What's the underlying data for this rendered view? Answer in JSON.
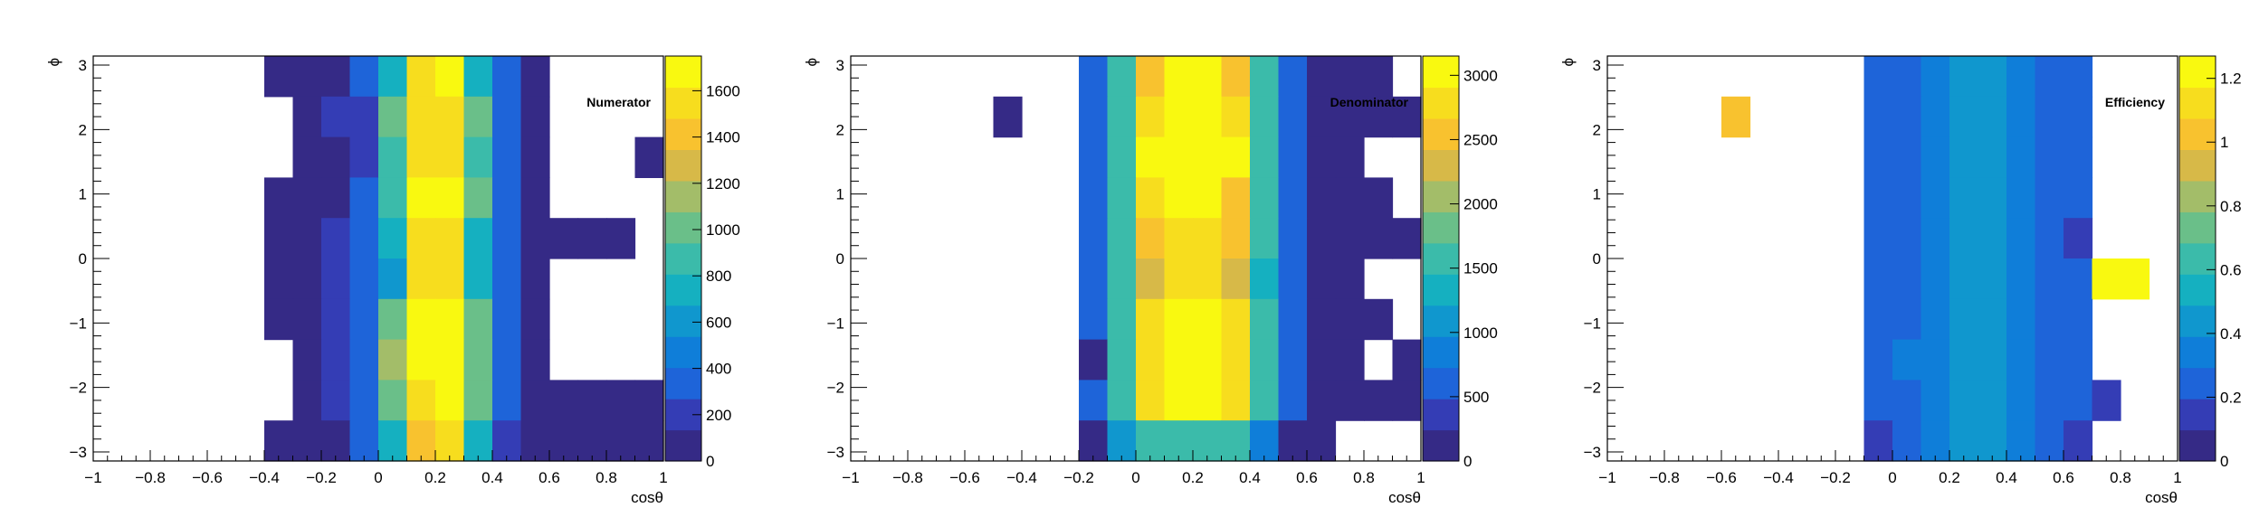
{
  "colors": {
    "palette": [
      "#352a86",
      "#343db5",
      "#1e64d9",
      "#0f7ed9",
      "#1097ce",
      "#15b0c0",
      "#3bbbaa",
      "#6abf89",
      "#a3bd69",
      "#d7b948",
      "#f8c22f",
      "#f7dd1e",
      "#f9f910"
    ],
    "frame": "#000000",
    "background": "#ffffff"
  },
  "chart_data": [
    {
      "type": "heatmap",
      "title": "Numerator",
      "xlabel": "cosθ",
      "ylabel": "ϕ",
      "xlim": [
        -1,
        1
      ],
      "ylim": [
        -3.14,
        3.14
      ],
      "xticks": [
        -1,
        -0.8,
        -0.6,
        -0.4,
        -0.2,
        0,
        0.2,
        0.4,
        0.6,
        0.8,
        1
      ],
      "xtick_labels": [
        "−1",
        "−0.8",
        "−0.6",
        "−0.4",
        "−0.2",
        "0",
        "0.2",
        "0.4",
        "0.6",
        "0.8",
        "1"
      ],
      "yticks": [
        -3,
        -2,
        -1,
        0,
        1,
        2,
        3
      ],
      "ytick_labels": [
        "−3",
        "−2",
        "−1",
        "0",
        "1",
        "2",
        "3"
      ],
      "zlim": [
        0,
        1750
      ],
      "zticks": [
        0,
        200,
        400,
        600,
        800,
        1000,
        1200,
        1400,
        1600
      ],
      "ztick_labels": [
        "0",
        "200",
        "400",
        "600",
        "800",
        "1000",
        "1200",
        "1400",
        "1600"
      ],
      "x_bins": 20,
      "y_bins": 10,
      "bins_occupied": [
        6,
        7,
        8,
        9,
        10,
        11,
        12,
        13,
        14,
        15,
        16,
        17,
        18
      ],
      "values": [
        [
          0,
          0,
          0,
          0,
          0,
          0,
          20,
          20,
          120,
          300,
          800,
          1600,
          1650,
          800,
          350,
          20,
          0,
          0,
          0,
          0
        ],
        [
          0,
          0,
          0,
          0,
          0,
          0,
          0,
          20,
          150,
          200,
          1050,
          1550,
          1600,
          950,
          400,
          20,
          0,
          0,
          0,
          0
        ],
        [
          0,
          0,
          0,
          0,
          0,
          0,
          0,
          20,
          100,
          200,
          850,
          1580,
          1560,
          900,
          300,
          20,
          0,
          0,
          0,
          40
        ],
        [
          0,
          0,
          0,
          0,
          0,
          0,
          20,
          20,
          100,
          350,
          900,
          1650,
          1650,
          1000,
          300,
          20,
          0,
          0,
          0,
          0
        ],
        [
          0,
          0,
          0,
          0,
          0,
          0,
          20,
          20,
          150,
          350,
          700,
          1500,
          1500,
          800,
          400,
          20,
          20,
          20,
          20,
          0
        ],
        [
          0,
          0,
          0,
          0,
          0,
          0,
          20,
          20,
          250,
          350,
          600,
          1550,
          1500,
          700,
          400,
          20,
          0,
          0,
          0,
          0
        ],
        [
          0,
          0,
          0,
          0,
          0,
          0,
          20,
          20,
          200,
          350,
          1000,
          1700,
          1700,
          1050,
          400,
          20,
          0,
          0,
          0,
          0
        ],
        [
          0,
          0,
          0,
          0,
          0,
          0,
          0,
          20,
          250,
          350,
          1100,
          1700,
          1700,
          1050,
          350,
          20,
          0,
          0,
          0,
          0
        ],
        [
          0,
          0,
          0,
          0,
          0,
          0,
          0,
          20,
          200,
          300,
          950,
          1600,
          1700,
          950,
          300,
          20,
          20,
          20,
          20,
          20
        ],
        [
          0,
          0,
          0,
          0,
          0,
          0,
          20,
          20,
          100,
          350,
          700,
          1400,
          1500,
          750,
          250,
          20,
          20,
          20,
          20,
          20
        ]
      ]
    },
    {
      "type": "heatmap",
      "title": "Denominator",
      "xlabel": "cosθ",
      "ylabel": "ϕ",
      "xlim": [
        -1,
        1
      ],
      "ylim": [
        -3.14,
        3.14
      ],
      "xticks": [
        -1,
        -0.8,
        -0.6,
        -0.4,
        -0.2,
        0,
        0.2,
        0.4,
        0.6,
        0.8,
        1
      ],
      "xtick_labels": [
        "−1",
        "−0.8",
        "−0.6",
        "−0.4",
        "−0.2",
        "0",
        "0.2",
        "0.4",
        "0.6",
        "0.8",
        "1"
      ],
      "yticks": [
        -3,
        -2,
        -1,
        0,
        1,
        2,
        3
      ],
      "ytick_labels": [
        "−3",
        "−2",
        "−1",
        "0",
        "1",
        "2",
        "3"
      ],
      "zlim": [
        0,
        3150
      ],
      "zticks": [
        0,
        500,
        1000,
        1500,
        2000,
        2500,
        3000
      ],
      "ztick_labels": [
        "0",
        "500",
        "1000",
        "1500",
        "2000",
        "2500",
        "3000"
      ],
      "x_bins": 20,
      "y_bins": 10,
      "bins_occupied": [
        4,
        5,
        6,
        7,
        8,
        9,
        10,
        11,
        12,
        13,
        14,
        15,
        16,
        17,
        18,
        19
      ],
      "values": [
        [
          0,
          0,
          0,
          0,
          0,
          0,
          0,
          0,
          500,
          1500,
          2500,
          3100,
          3100,
          2500,
          1500,
          500,
          50,
          50,
          50,
          0
        ],
        [
          0,
          0,
          0,
          0,
          0,
          50,
          0,
          0,
          500,
          1500,
          2900,
          3100,
          3100,
          2800,
          1500,
          500,
          50,
          50,
          50,
          50
        ],
        [
          0,
          0,
          0,
          0,
          0,
          0,
          0,
          0,
          500,
          1500,
          3000,
          3100,
          3100,
          3000,
          1500,
          500,
          50,
          50,
          0,
          0
        ],
        [
          0,
          0,
          0,
          0,
          0,
          0,
          0,
          0,
          500,
          1500,
          2700,
          3100,
          3100,
          2600,
          1500,
          500,
          50,
          50,
          50,
          0
        ],
        [
          0,
          0,
          0,
          0,
          0,
          0,
          0,
          0,
          500,
          1500,
          2600,
          2800,
          2900,
          2600,
          1500,
          500,
          50,
          50,
          50,
          50
        ],
        [
          0,
          0,
          0,
          0,
          0,
          0,
          0,
          0,
          600,
          1500,
          2400,
          2900,
          2800,
          2400,
          1400,
          600,
          50,
          50,
          0,
          0
        ],
        [
          0,
          0,
          0,
          0,
          0,
          0,
          0,
          0,
          600,
          1500,
          2800,
          3100,
          3100,
          2800,
          1500,
          500,
          50,
          50,
          50,
          0
        ],
        [
          0,
          0,
          0,
          0,
          0,
          0,
          0,
          0,
          50,
          1500,
          2900,
          3100,
          3100,
          2800,
          1500,
          500,
          50,
          50,
          0,
          50
        ],
        [
          0,
          0,
          0,
          0,
          0,
          0,
          0,
          0,
          500,
          1500,
          2900,
          3100,
          3100,
          2900,
          1500,
          500,
          50,
          50,
          50,
          50
        ],
        [
          0,
          0,
          0,
          0,
          0,
          0,
          0,
          0,
          50,
          1000,
          1500,
          1500,
          1500,
          1500,
          900,
          50,
          50,
          0,
          0,
          0
        ]
      ]
    },
    {
      "type": "heatmap",
      "title": "Efficiency",
      "xlabel": "cosθ",
      "ylabel": "ϕ",
      "xlim": [
        -1,
        1
      ],
      "ylim": [
        -3.14,
        3.14
      ],
      "xticks": [
        -1,
        -0.8,
        -0.6,
        -0.4,
        -0.2,
        0,
        0.2,
        0.4,
        0.6,
        0.8,
        1
      ],
      "xtick_labels": [
        "−1",
        "−0.8",
        "−0.6",
        "−0.4",
        "−0.2",
        "0",
        "0.2",
        "0.4",
        "0.6",
        "0.8",
        "1"
      ],
      "yticks": [
        -3,
        -2,
        -1,
        0,
        1,
        2,
        3
      ],
      "ytick_labels": [
        "−3",
        "−2",
        "−1",
        "0",
        "1",
        "2",
        "3"
      ],
      "zlim": [
        0,
        1.27
      ],
      "zticks": [
        0,
        0.2,
        0.4,
        0.6,
        0.8,
        1,
        1.2
      ],
      "ztick_labels": [
        "0",
        "0.2",
        "0.4",
        "0.6",
        "0.8",
        "1",
        "1.2"
      ],
      "x_bins": 20,
      "y_bins": 10,
      "bins_occupied": [
        4,
        5,
        6,
        7,
        8,
        9,
        10,
        11,
        12,
        13,
        14,
        15,
        16,
        17,
        18
      ],
      "values": [
        [
          0,
          0,
          0,
          0,
          0,
          0,
          0,
          0,
          0,
          0.22,
          0.27,
          0.33,
          0.4,
          0.4,
          0.33,
          0.27,
          0.22,
          0,
          0,
          0
        ],
        [
          0,
          0,
          0,
          0,
          1.05,
          0,
          0,
          0,
          0,
          0.2,
          0.27,
          0.33,
          0.4,
          0.4,
          0.33,
          0.29,
          0.22,
          0,
          0,
          0
        ],
        [
          0,
          0,
          0,
          0,
          0,
          0,
          0,
          0,
          0,
          0.2,
          0.27,
          0.33,
          0.4,
          0.4,
          0.33,
          0.27,
          0.2,
          0,
          0,
          0
        ],
        [
          0,
          0,
          0,
          0,
          0,
          0,
          0,
          0,
          0,
          0.2,
          0.27,
          0.36,
          0.41,
          0.4,
          0.36,
          0.26,
          0.22,
          0,
          0,
          0
        ],
        [
          0,
          0,
          0,
          0,
          0,
          0,
          0,
          0,
          0,
          0.22,
          0.29,
          0.36,
          0.42,
          0.4,
          0.36,
          0.28,
          0.13,
          0,
          0,
          0
        ],
        [
          0,
          0,
          0,
          0,
          0,
          0,
          0,
          0,
          0,
          0.22,
          0.27,
          0.36,
          0.4,
          0.4,
          0.36,
          0.29,
          0.22,
          1.26,
          1.24,
          0
        ],
        [
          0,
          0,
          0,
          0,
          0,
          0,
          0,
          0,
          0,
          0.2,
          0.27,
          0.33,
          0.41,
          0.4,
          0.36,
          0.29,
          0.25,
          0,
          0,
          0
        ],
        [
          0,
          0,
          0,
          0,
          0,
          0,
          0,
          0,
          0,
          0.22,
          0.31,
          0.35,
          0.41,
          0.42,
          0.35,
          0.29,
          0.26,
          0,
          0,
          0
        ],
        [
          0,
          0,
          0,
          0,
          0,
          0,
          0,
          0,
          0,
          0.2,
          0.27,
          0.37,
          0.42,
          0.42,
          0.37,
          0.28,
          0.22,
          0.18,
          0,
          0
        ],
        [
          0,
          0,
          0,
          0,
          0,
          0,
          0,
          0,
          0,
          0.15,
          0.24,
          0.32,
          0.4,
          0.4,
          0.32,
          0.24,
          0.15,
          0,
          0,
          0
        ]
      ]
    }
  ]
}
